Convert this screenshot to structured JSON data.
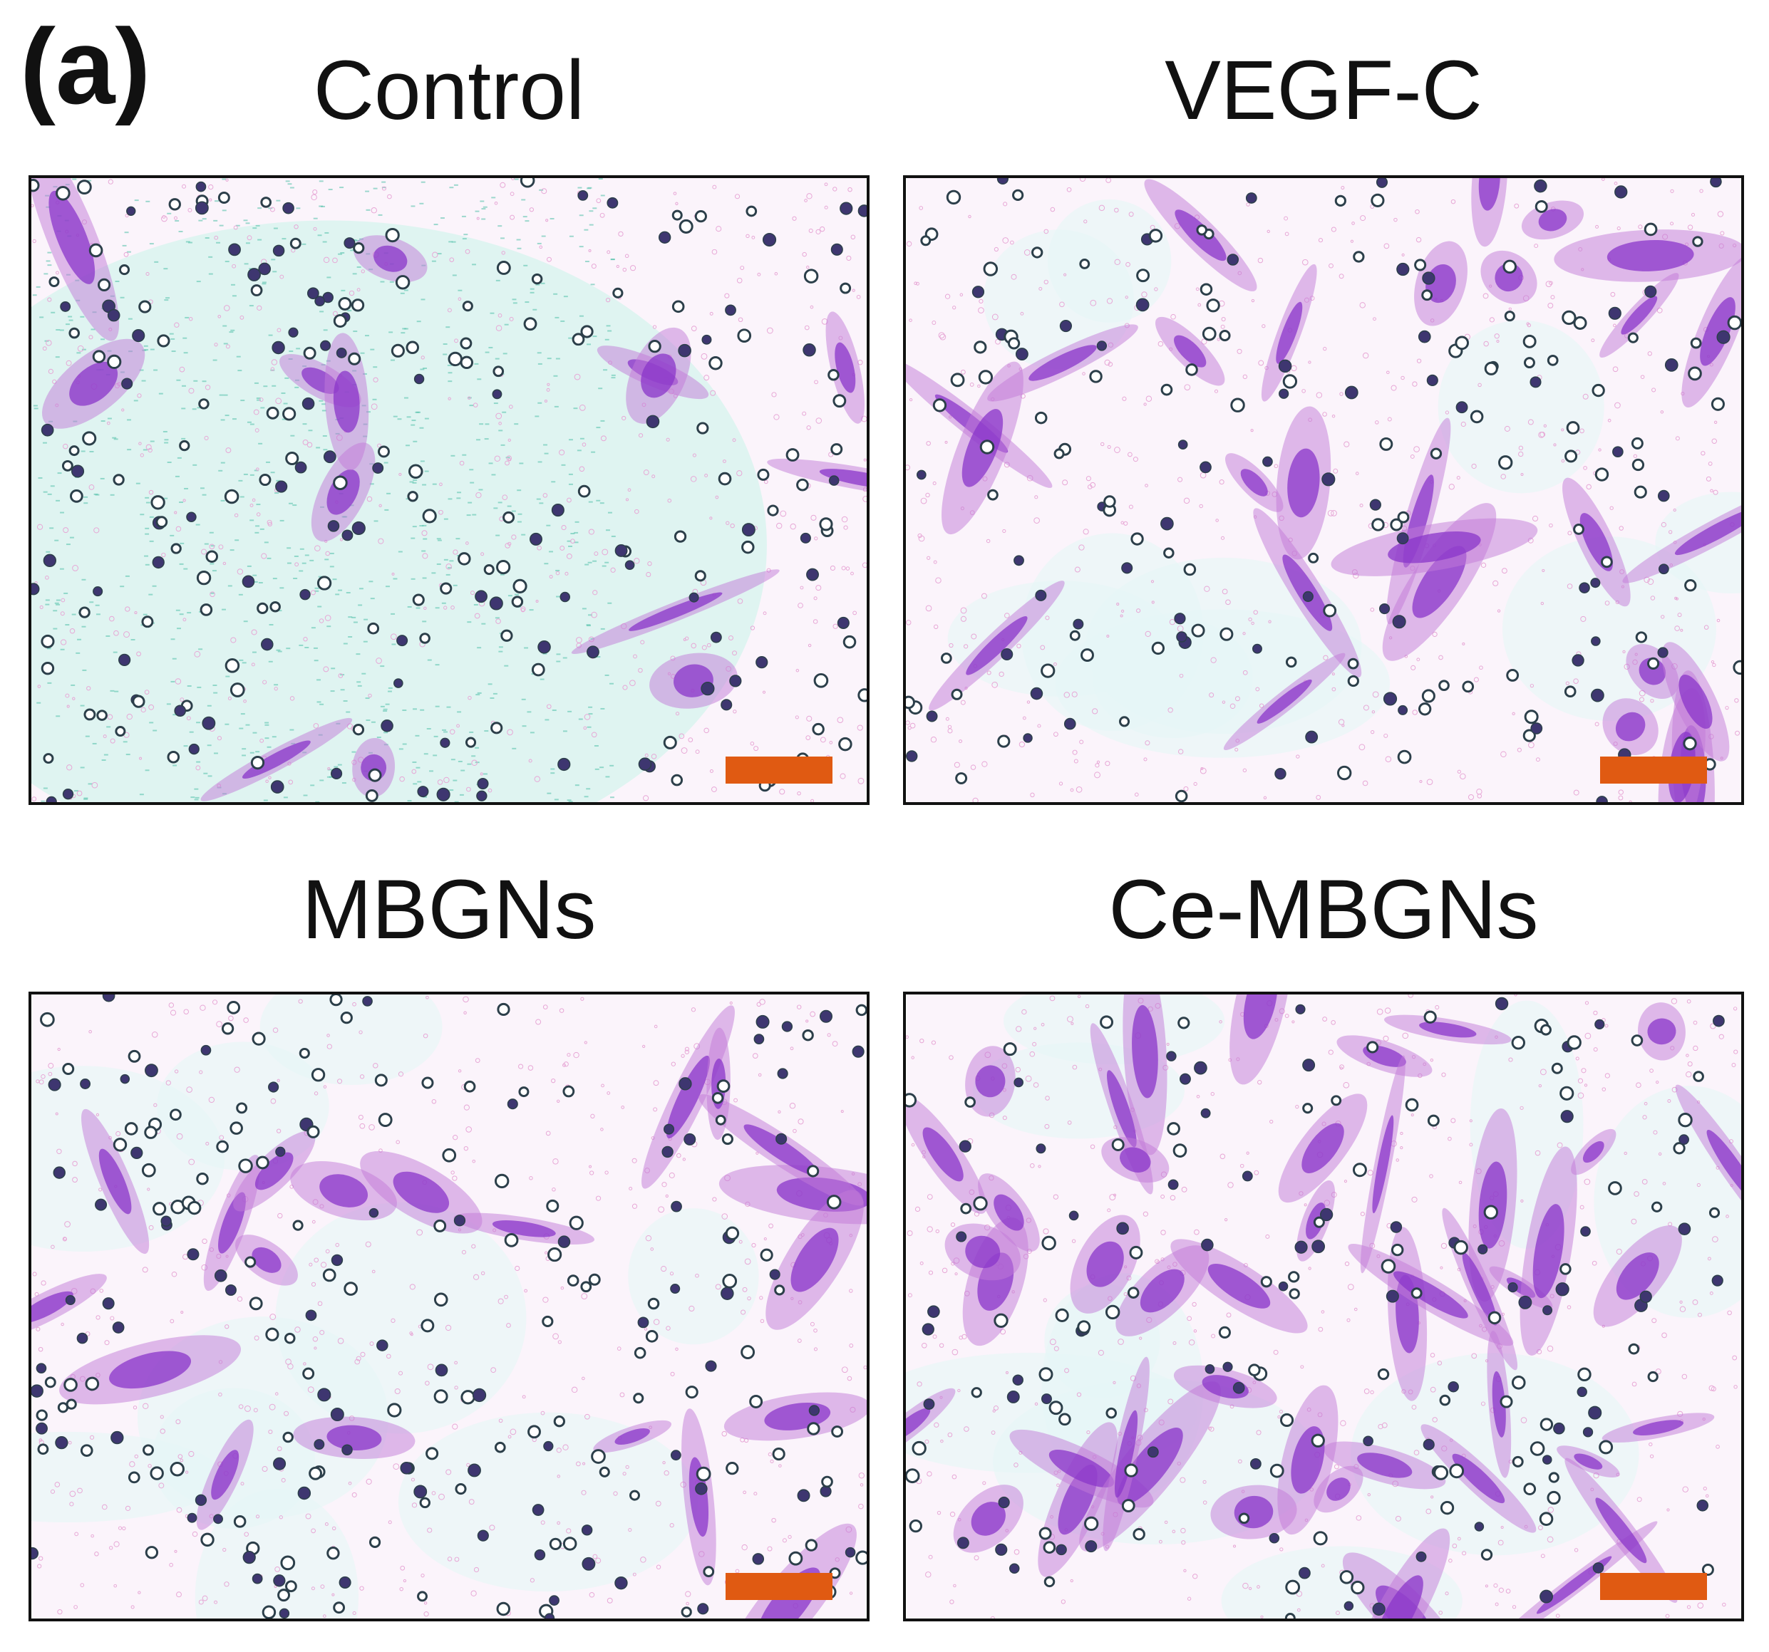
{
  "figure": {
    "panel_label": "(a)"
  },
  "panels": [
    {
      "title": "Control",
      "scale_bar_color": "#e05a12"
    },
    {
      "title": "VEGF-C",
      "scale_bar_color": "#e05a12"
    },
    {
      "title": "MBGNs",
      "scale_bar_color": "#e05a12"
    },
    {
      "title": "Ce-MBGNs",
      "scale_bar_color": "#e05a12"
    }
  ]
}
